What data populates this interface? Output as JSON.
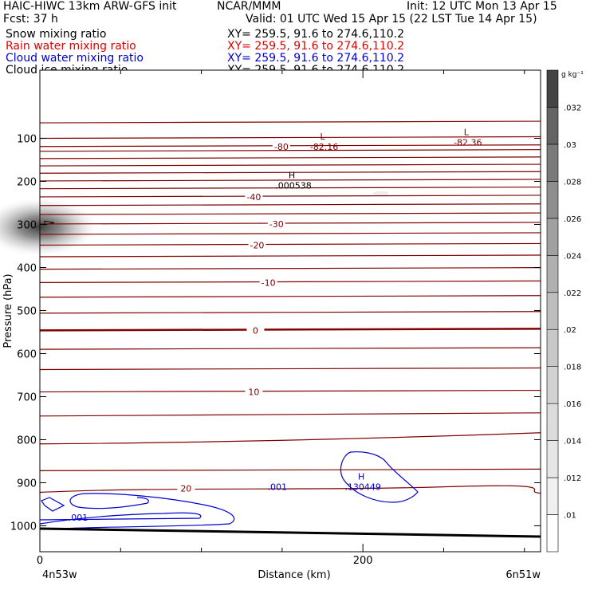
{
  "header": {
    "title": "HAIC-HIWC 13km ARW-GFS init",
    "org": "NCAR/MMM",
    "init": "Init: 12 UTC Mon 13 Apr 15",
    "fcst": "Fcst:   37 h",
    "valid": "Valid: 01 UTC Wed 15 Apr 15 (22 LST Tue 14 Apr 15)",
    "fields": [
      {
        "name": "Snow mixing ratio",
        "xy": "XY= 259.5, 91.6 to 274.6,110.2",
        "color": "#000000"
      },
      {
        "name": "Rain water mixing ratio",
        "xy": "XY= 259.5, 91.6 to 274.6,110.2",
        "color": "#e00000"
      },
      {
        "name": "Cloud water mixing ratio",
        "xy": "XY= 259.5, 91.6 to 274.6,110.2",
        "color": "#0000d0"
      },
      {
        "name": "Cloud ice mixing ratio",
        "xy": "XY= 259.5, 91.6 to 274.6,110.2",
        "color": "#000000"
      }
    ]
  },
  "chart_data": {
    "type": "contour",
    "xlabel": "Distance (km)",
    "ylabel": "Pressure (hPa)",
    "xlim": [
      0,
      310
    ],
    "ylim": [
      1050,
      45
    ],
    "x_ticks": [
      0,
      200
    ],
    "x_end_labels": [
      "4n53w",
      "6n51w"
    ],
    "y_ticks": [
      100,
      200,
      300,
      400,
      500,
      600,
      700,
      800,
      900,
      1000
    ],
    "temperature_isotherms": [
      {
        "p": 64,
        "label": ""
      },
      {
        "p": 100,
        "label": ""
      },
      {
        "p": 119,
        "label": "-80"
      },
      {
        "p": 130,
        "label": ""
      },
      {
        "p": 147,
        "label": ""
      },
      {
        "p": 164,
        "label": ""
      },
      {
        "p": 181,
        "label": ""
      },
      {
        "p": 199,
        "label": ""
      },
      {
        "p": 217,
        "label": ""
      },
      {
        "p": 236,
        "label": "-40"
      },
      {
        "p": 256,
        "label": ""
      },
      {
        "p": 277,
        "label": ""
      },
      {
        "p": 299,
        "label": "-30"
      },
      {
        "p": 323,
        "label": ""
      },
      {
        "p": 348,
        "label": "-20"
      },
      {
        "p": 375,
        "label": ""
      },
      {
        "p": 404,
        "label": ""
      },
      {
        "p": 435,
        "label": "-10"
      },
      {
        "p": 469,
        "label": ""
      },
      {
        "p": 506,
        "label": ""
      },
      {
        "p": 546,
        "label": "0",
        "bold": true
      },
      {
        "p": 590,
        "label": ""
      },
      {
        "p": 637,
        "label": ""
      },
      {
        "p": 689,
        "label": "10"
      },
      {
        "p": 745,
        "label": ""
      },
      {
        "p": 806,
        "label": ""
      },
      {
        "p": 872,
        "label": ""
      },
      {
        "p": 913,
        "label": "20"
      }
    ],
    "extrema": [
      {
        "type": "L",
        "value": "-82.16",
        "x": 175,
        "p": 110,
        "color": "#800000"
      },
      {
        "type": "L",
        "value": "-82.36",
        "x": 264,
        "p": 100,
        "color": "#800000"
      },
      {
        "type": "H",
        "value": ".000538",
        "x": 156,
        "p": 200,
        "color": "#000000"
      },
      {
        "type": "H",
        "value": ".130449",
        "x": 199,
        "p": 900,
        "color": "#0000d0"
      }
    ],
    "cloud_water_contour": {
      "level": ".001",
      "color": "#0000d0"
    },
    "colorbar": {
      "unit": "g kg⁻¹",
      "levels": [
        ".01",
        ".012",
        ".014",
        ".016",
        ".018",
        ".02",
        ".022",
        ".024",
        ".026",
        ".028",
        ".03",
        ".032"
      ],
      "colors": [
        "#ffffff",
        "#f0f0f0",
        "#e6e6e6",
        "#dcdcdc",
        "#d2d2d2",
        "#c8c8c8",
        "#bebebe",
        "#b0b0b0",
        "#a0a0a0",
        "#8e8e8e",
        "#7a7a7a",
        "#646464",
        "#444444"
      ]
    }
  }
}
